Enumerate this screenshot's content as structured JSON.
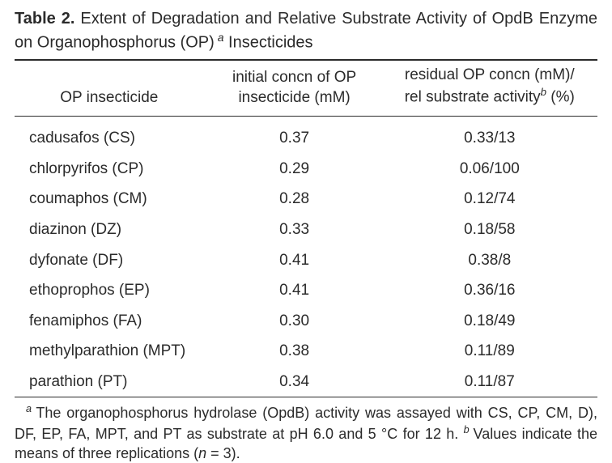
{
  "title": {
    "label": "Table 2.",
    "text_pre": " Extent of Degradation and Relative Substrate Activity of OpdB Enzyme on Organophosphorus (OP)",
    "sup": " a",
    "text_post": " Insecticides"
  },
  "headers": {
    "c1": "OP insecticide",
    "c2_l1": "initial concn of OP",
    "c2_l2": "insecticide (mM)",
    "c3_l1": "residual OP concn (mM)/",
    "c3_l2_a": "rel substrate activity",
    "c3_l2_sup": "b",
    "c3_l2_b": " (%)"
  },
  "rows": [
    {
      "name": "cadusafos (CS)",
      "init": "0.37",
      "res": "0.33/13"
    },
    {
      "name": "chlorpyrifos (CP)",
      "init": "0.29",
      "res": "0.06/100"
    },
    {
      "name": "coumaphos (CM)",
      "init": "0.28",
      "res": "0.12/74"
    },
    {
      "name": "diazinon (DZ)",
      "init": "0.33",
      "res": "0.18/58"
    },
    {
      "name": "dyfonate (DF)",
      "init": "0.41",
      "res": "0.38/8"
    },
    {
      "name": "ethoprophos (EP)",
      "init": "0.41",
      "res": "0.36/16"
    },
    {
      "name": "fenamiphos (FA)",
      "init": "0.30",
      "res": "0.18/49"
    },
    {
      "name": "methylparathion (MPT)",
      "init": "0.38",
      "res": "0.11/89"
    },
    {
      "name": "parathion (PT)",
      "init": "0.34",
      "res": "0.11/87"
    }
  ],
  "footnote": {
    "a_sup": "a ",
    "a_text": "The organophosphorus hydrolase (OpdB) activity was assayed with CS, CP, CM, D), DF, EP, FA, MPT, and PT as substrate at pH 6.0 and 5 °C for 12 h. ",
    "b_sup": "b ",
    "b_text_a": "Values indicate the means of three replications (",
    "b_ital": "n",
    "b_text_b": " = 3)."
  },
  "style": {
    "text_color": "#2b2b2b",
    "background": "#ffffff"
  }
}
